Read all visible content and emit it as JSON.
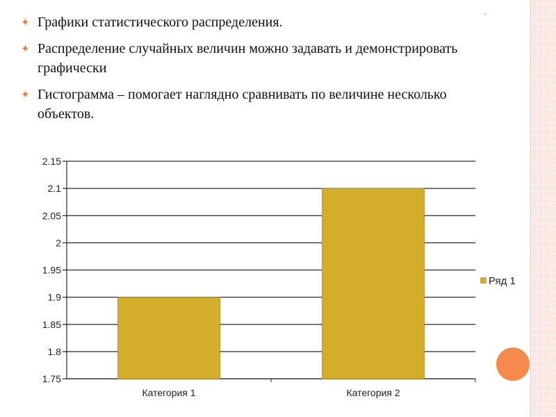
{
  "slide": {
    "bullets": [
      "Графики статистического распределения.",
      "Распределение случайных величин можно задавать и демонстрировать графически",
      "Гистограмма – помогает наглядно сравнивать по величине несколько объектов."
    ],
    "corner_mark": "°",
    "colors": {
      "bullet_marker": "#f27a3a",
      "accent_circle": "#f58a4b",
      "border_strip": "#fbe6e0"
    }
  },
  "chart_data": {
    "type": "bar",
    "categories": [
      "Категория 1",
      "Категория 2"
    ],
    "series": [
      {
        "name": "Ряд 1",
        "values": [
          1.9,
          2.1
        ],
        "color": "#d4ae2a"
      }
    ],
    "ylim": [
      1.75,
      2.15
    ],
    "yticks": [
      1.75,
      1.8,
      1.85,
      1.9,
      1.95,
      2,
      2.05,
      2.1,
      2.15
    ],
    "ytick_labels": [
      "1.75",
      "1.8",
      "1.85",
      "1.9",
      "1.95",
      "2",
      "2.05",
      "2.1",
      "2.15"
    ],
    "grid": true,
    "legend_position": "right"
  }
}
